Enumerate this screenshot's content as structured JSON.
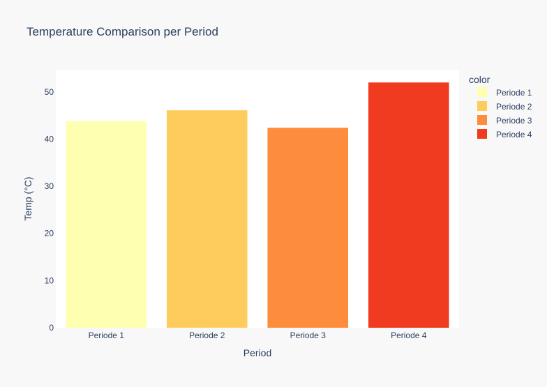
{
  "chart_data": {
    "type": "bar",
    "title": "Temperature Comparison per Period",
    "xlabel": "Period",
    "ylabel": "Temp (°C)",
    "categories": [
      "Periode 1",
      "Periode 2",
      "Periode 3",
      "Periode 4"
    ],
    "values": [
      43.8,
      46.1,
      42.4,
      52.0
    ],
    "colors": [
      "#ffffb2",
      "#fecc5c",
      "#fd8d3c",
      "#f03b20"
    ],
    "ylim": [
      0,
      54.7
    ],
    "yticks": [
      0,
      10,
      20,
      30,
      40,
      50
    ],
    "grid": false,
    "legend": {
      "title": "color",
      "placement": "right",
      "entries": [
        "Periode 1",
        "Periode 2",
        "Periode 3",
        "Periode 4"
      ]
    }
  }
}
